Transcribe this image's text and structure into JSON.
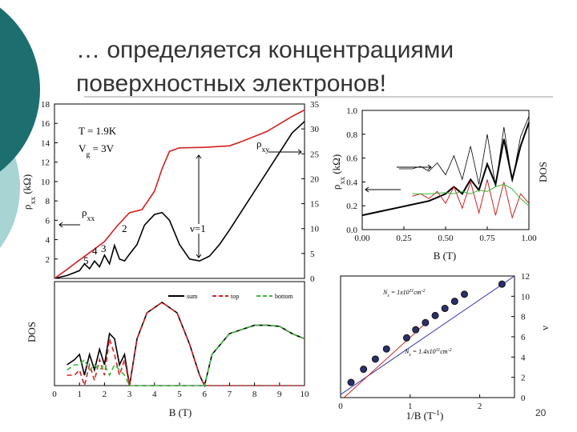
{
  "slide": {
    "title_lines": [
      "… определяется концентрациями",
      "поверхностных электронов!"
    ],
    "slide_number": "20"
  },
  "chart_data": [
    {
      "type": "line",
      "xlim": [
        0,
        10
      ],
      "ylim": [
        0,
        18
      ],
      "yticks": [
        2,
        4,
        6,
        8,
        10,
        12,
        14,
        16,
        18
      ],
      "y2lim": [
        0,
        35
      ],
      "y2ticks": [
        0,
        5,
        10,
        15,
        20,
        25,
        30,
        35
      ],
      "ylabel": [
        {
          "t": "ρ"
        },
        {
          "sub": "xx"
        },
        {
          "t": " (kΩ)"
        }
      ],
      "series": [
        {
          "color": "#000000",
          "axis": "y",
          "x": [
            0,
            0.5,
            1,
            1.2,
            1.4,
            1.6,
            1.8,
            2.0,
            2.2,
            2.4,
            2.6,
            2.8,
            3.0,
            3.3,
            3.6,
            4.0,
            4.3,
            4.6,
            5.0,
            5.4,
            5.8,
            6.2,
            6.6,
            7,
            7.5,
            8,
            8.5,
            9,
            9.5,
            10
          ],
          "values": [
            0,
            0.3,
            0.8,
            1.5,
            1.0,
            1.8,
            1.2,
            2.4,
            1.5,
            3.4,
            2.0,
            1.8,
            2.5,
            3.5,
            5.5,
            6.6,
            6.8,
            6.0,
            3.5,
            2.0,
            1.8,
            2.3,
            3.5,
            5.0,
            7.0,
            9.0,
            11.0,
            13.0,
            15.0,
            16.2
          ]
        },
        {
          "color": "#d42020",
          "axis": "y2",
          "x": [
            0,
            0.5,
            1,
            1.5,
            2,
            2.5,
            3,
            3.5,
            4,
            4.3,
            4.6,
            5,
            6,
            7,
            7.5,
            8,
            8.5,
            9,
            9.5,
            10
          ],
          "values": [
            0,
            1.8,
            3.7,
            5.5,
            7.4,
            10.5,
            13.2,
            13.8,
            17.5,
            22,
            25.5,
            26.2,
            26.3,
            26.6,
            27.5,
            28.5,
            29.5,
            31,
            32.5,
            33.8
          ]
        }
      ],
      "annotations": [
        {
          "parts": [
            {
              "t": "T = 1.9K"
            }
          ]
        },
        {
          "parts": [
            {
              "t": "V"
            },
            {
              "sub": "g"
            },
            {
              "t": " = 3V"
            }
          ]
        },
        {
          "parts": [
            {
              "t": "ρ"
            },
            {
              "sub": "xy"
            }
          ]
        },
        {
          "parts": [
            {
              "t": "ρ"
            },
            {
              "sub": "xx"
            }
          ]
        },
        {
          "parts": [
            {
              "t": "ν=1"
            }
          ]
        },
        {
          "parts": [
            {
              "t": "2"
            }
          ]
        },
        {
          "parts": [
            {
              "t": "3"
            }
          ]
        },
        {
          "parts": [
            {
              "t": "4"
            }
          ]
        },
        {
          "parts": [
            {
              "t": "5"
            }
          ]
        }
      ]
    },
    {
      "type": "line",
      "xlim": [
        0,
        10
      ],
      "xticks": [
        0,
        1,
        2,
        3,
        4,
        5,
        6,
        7,
        8,
        9,
        10
      ],
      "ylim": [
        0,
        1
      ],
      "xlabel": [
        {
          "t": "B (T)"
        }
      ],
      "ylabel": [
        {
          "t": "DOS"
        }
      ],
      "legend": "top-right",
      "x": [
        0.5,
        0.8,
        1.0,
        1.2,
        1.4,
        1.6,
        1.8,
        2.0,
        2.2,
        2.4,
        2.6,
        2.8,
        3.0,
        3.3,
        3.7,
        4.3,
        4.9,
        5.4,
        5.8,
        6.0,
        6.3,
        7,
        8,
        8.5,
        9,
        9.5,
        10
      ],
      "series": [
        {
          "name": "sum",
          "color": "#000000",
          "dashed": false,
          "values": [
            0.2,
            0.25,
            0.3,
            0.1,
            0.3,
            0.15,
            0.35,
            0.2,
            0.5,
            0.45,
            0.2,
            0.3,
            0,
            0.45,
            0.7,
            0.8,
            0.7,
            0.4,
            0.1,
            0,
            0.3,
            0.5,
            0.58,
            0.58,
            0.57,
            0.5,
            0.45
          ]
        },
        {
          "name": "top",
          "color": "#d42020",
          "dashed": true,
          "values": [
            0.1,
            0.1,
            0.15,
            0,
            0.2,
            0.05,
            0.25,
            0.1,
            0.45,
            0.3,
            0.1,
            0.25,
            0,
            0.45,
            0.7,
            0.8,
            0.7,
            0.4,
            0.1,
            0,
            0,
            0,
            0,
            0,
            0,
            0,
            0
          ]
        },
        {
          "name": "bottom",
          "color": "#3cb83c",
          "dashed": true,
          "values": [
            0.15,
            0.2,
            0.2,
            0.25,
            0.15,
            0.2,
            0.15,
            0.2,
            0.1,
            0.2,
            0.15,
            0.1,
            0,
            0,
            0,
            0,
            0,
            0,
            0,
            0,
            0.3,
            0.5,
            0.58,
            0.58,
            0.57,
            0.5,
            0.45
          ]
        }
      ]
    },
    {
      "type": "line",
      "xlim": [
        0,
        1
      ],
      "xticks": [
        {
          "value": 0,
          "label": "0.00"
        },
        {
          "value": 0.25,
          "label": "0.25"
        },
        {
          "value": 0.5,
          "label": "0.50"
        },
        {
          "value": 0.75,
          "label": "0.75"
        },
        {
          "value": 1,
          "label": "1.00"
        }
      ],
      "ylim": [
        0,
        1
      ],
      "yticks": [
        {
          "value": 0,
          "label": "0.0"
        },
        {
          "value": 0.2,
          "label": "0.2"
        },
        {
          "value": 0.4,
          "label": "0.4"
        },
        {
          "value": 0.6,
          "label": "0.6"
        },
        {
          "value": 0.8,
          "label": "0.8"
        },
        {
          "value": 1,
          "label": "1.0"
        }
      ],
      "xlabel": [
        {
          "t": "B (T)"
        }
      ],
      "ylabel": [
        {
          "t": "ρ"
        },
        {
          "sub": "xx"
        },
        {
          "t": " (kΩ)"
        }
      ],
      "y2label": [
        {
          "t": "DOS"
        }
      ],
      "series": [
        {
          "color": "#000000",
          "width": 2,
          "x": [
            0,
            0.1,
            0.2,
            0.3,
            0.4,
            0.45,
            0.5,
            0.55,
            0.6,
            0.65,
            0.7,
            0.75,
            0.8,
            0.85,
            0.9,
            0.95,
            1.0
          ],
          "values": [
            0.12,
            0.15,
            0.18,
            0.21,
            0.24,
            0.27,
            0.3,
            0.36,
            0.3,
            0.42,
            0.33,
            0.55,
            0.38,
            0.76,
            0.42,
            0.7,
            0.9
          ]
        },
        {
          "color": "#000000",
          "width": 0.8,
          "x": [
            0.22,
            0.3,
            0.35,
            0.4,
            0.45,
            0.5,
            0.55,
            0.6,
            0.65,
            0.7,
            0.75,
            0.8,
            0.85,
            0.9,
            0.95,
            1.0
          ],
          "values": [
            0.51,
            0.51,
            0.53,
            0.49,
            0.56,
            0.46,
            0.62,
            0.42,
            0.7,
            0.38,
            0.8,
            0.36,
            0.86,
            0.4,
            0.78,
            0.95
          ]
        },
        {
          "color": "#d42020",
          "width": 1,
          "x": [
            0.3,
            0.35,
            0.4,
            0.45,
            0.5,
            0.55,
            0.6,
            0.65,
            0.7,
            0.75,
            0.8,
            0.85,
            0.9,
            0.95,
            1.0
          ],
          "values": [
            0.28,
            0.3,
            0.26,
            0.32,
            0.22,
            0.36,
            0.18,
            0.4,
            0.14,
            0.42,
            0.12,
            0.4,
            0.1,
            0.3,
            0.22
          ]
        },
        {
          "color": "#3cb83c",
          "width": 1,
          "x": [
            0.3,
            0.4,
            0.5,
            0.55,
            0.6,
            0.65,
            0.7,
            0.75,
            0.8,
            0.85,
            0.9,
            0.95,
            1.0
          ],
          "values": [
            0.3,
            0.3,
            0.31,
            0.3,
            0.32,
            0.3,
            0.33,
            0.32,
            0.36,
            0.38,
            0.34,
            0.26,
            0.2
          ]
        }
      ]
    },
    {
      "type": "scatter",
      "xlim": [
        0,
        2.5
      ],
      "xticks": [
        0,
        1,
        2
      ],
      "ylim": [
        0,
        12
      ],
      "yticks": [
        0,
        2,
        4,
        6,
        8,
        10,
        12
      ],
      "yaxis_side": "right",
      "xlabel": [
        {
          "t": "1/B (T"
        },
        {
          "sup": "-1"
        },
        {
          "t": ")"
        }
      ],
      "ylabel": [
        {
          "t": "ν"
        }
      ],
      "color": "#2b2f6b",
      "x": [
        0.15,
        0.33,
        0.5,
        0.66,
        0.95,
        1.08,
        1.22,
        1.36,
        1.5,
        1.64,
        1.78,
        2.32
      ],
      "values": [
        1.5,
        2.8,
        3.8,
        4.8,
        5.9,
        6.7,
        7.4,
        8.1,
        8.8,
        9.5,
        10.2,
        11.2
      ],
      "lines": [
        {
          "color": "#3a3ab8",
          "x": [
            0,
            2.5
          ],
          "values": [
            0.3,
            12
          ]
        },
        {
          "color": "#d42020",
          "x": [
            0.05,
            1.2
          ],
          "values": [
            0,
            7.2
          ]
        }
      ],
      "annotations": [
        {
          "parts": [
            {
              "t": "N"
            },
            {
              "sub": "s"
            },
            {
              "t": " = 1x10"
            },
            {
              "sup": "11"
            },
            {
              "t": "cm"
            },
            {
              "sup": "-2"
            }
          ]
        },
        {
          "parts": [
            {
              "t": "N"
            },
            {
              "sub": "s"
            },
            {
              "t": " = 1.4x10"
            },
            {
              "sup": "11"
            },
            {
              "t": "cm"
            },
            {
              "sup": "-2"
            }
          ]
        }
      ]
    }
  ]
}
